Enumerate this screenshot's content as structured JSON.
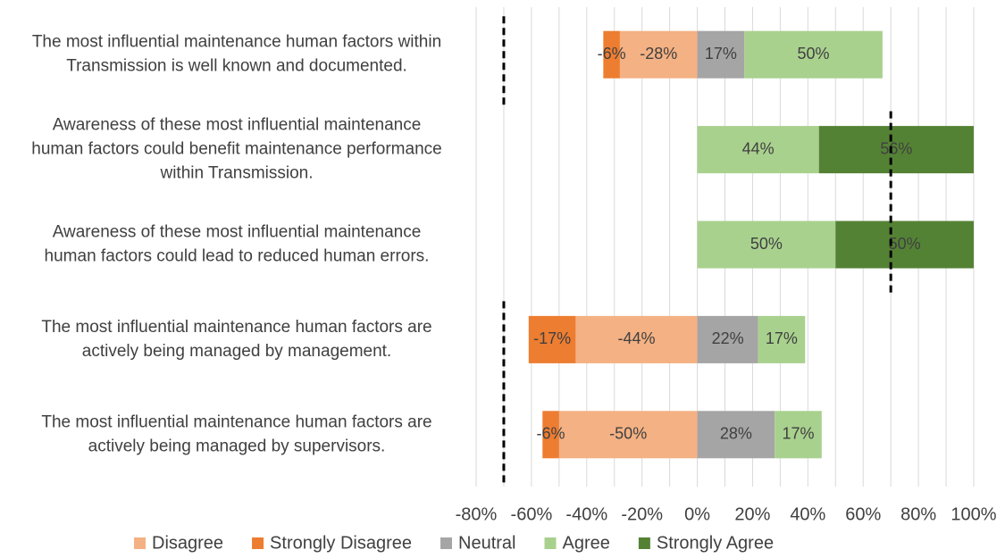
{
  "chart_data": {
    "type": "diverging_bar",
    "categories": [
      "The most influential maintenance human factors within\nTransmission is well known and documented.",
      "Awareness of these most influential maintenance\nhuman factors could benefit maintenance performance\nwithin Transmission.",
      "Awareness of these most influential maintenance\nhuman factors could lead to reduced human errors.",
      "The most influential maintenance human factors are\nactively being managed by management.",
      "The most influential maintenance human factors are\nactively being managed by supervisors."
    ],
    "series": [
      {
        "name": "Disagree",
        "color": "#f4b183",
        "values": [
          -28,
          null,
          null,
          -44,
          -50
        ],
        "value_labels": [
          "-28%",
          null,
          null,
          "-44%",
          "-50%"
        ]
      },
      {
        "name": "Strongly Disagree",
        "color": "#ed7d31",
        "values": [
          -6,
          null,
          null,
          -17,
          -6
        ],
        "value_labels": [
          "-6%",
          null,
          null,
          "-17%",
          "-6%"
        ]
      },
      {
        "name": "Neutral",
        "color": "#a5a5a5",
        "values": [
          17,
          null,
          null,
          22,
          28
        ],
        "value_labels": [
          "17%",
          null,
          null,
          "22%",
          "28%"
        ]
      },
      {
        "name": "Agree",
        "color": "#a9d18e",
        "values": [
          50,
          44,
          50,
          17,
          17
        ],
        "value_labels": [
          "50%",
          "44%",
          "50%",
          "17%",
          "17%"
        ]
      },
      {
        "name": "Strongly Agree",
        "color": "#548235",
        "values": [
          null,
          56,
          50,
          null,
          null
        ],
        "value_labels": [
          null,
          "56%",
          "50%",
          null,
          null
        ]
      }
    ],
    "xlim": [
      -80,
      100
    ],
    "xticks": [
      {
        "value": -80,
        "label": "-80%"
      },
      {
        "value": -60,
        "label": "-60%"
      },
      {
        "value": -40,
        "label": "-40%"
      },
      {
        "value": -20,
        "label": "-20%"
      },
      {
        "value": 0,
        "label": "0%"
      },
      {
        "value": 20,
        "label": "20%"
      },
      {
        "value": 40,
        "label": "40%"
      },
      {
        "value": 60,
        "label": "60%"
      },
      {
        "value": 80,
        "label": "80%"
      },
      {
        "value": 100,
        "label": "100%"
      }
    ],
    "gridlines": [
      -80,
      -70,
      -60,
      -50,
      -40,
      -30,
      -20,
      -10,
      0,
      10,
      20,
      30,
      40,
      50,
      60,
      70,
      80,
      90,
      100
    ],
    "reference_lines": [
      {
        "value": -70,
        "span": [
          0,
          0
        ]
      },
      {
        "value": 70,
        "span": [
          1,
          2
        ]
      },
      {
        "value": -70,
        "span": [
          3,
          4
        ]
      }
    ],
    "legend": "bottom"
  }
}
